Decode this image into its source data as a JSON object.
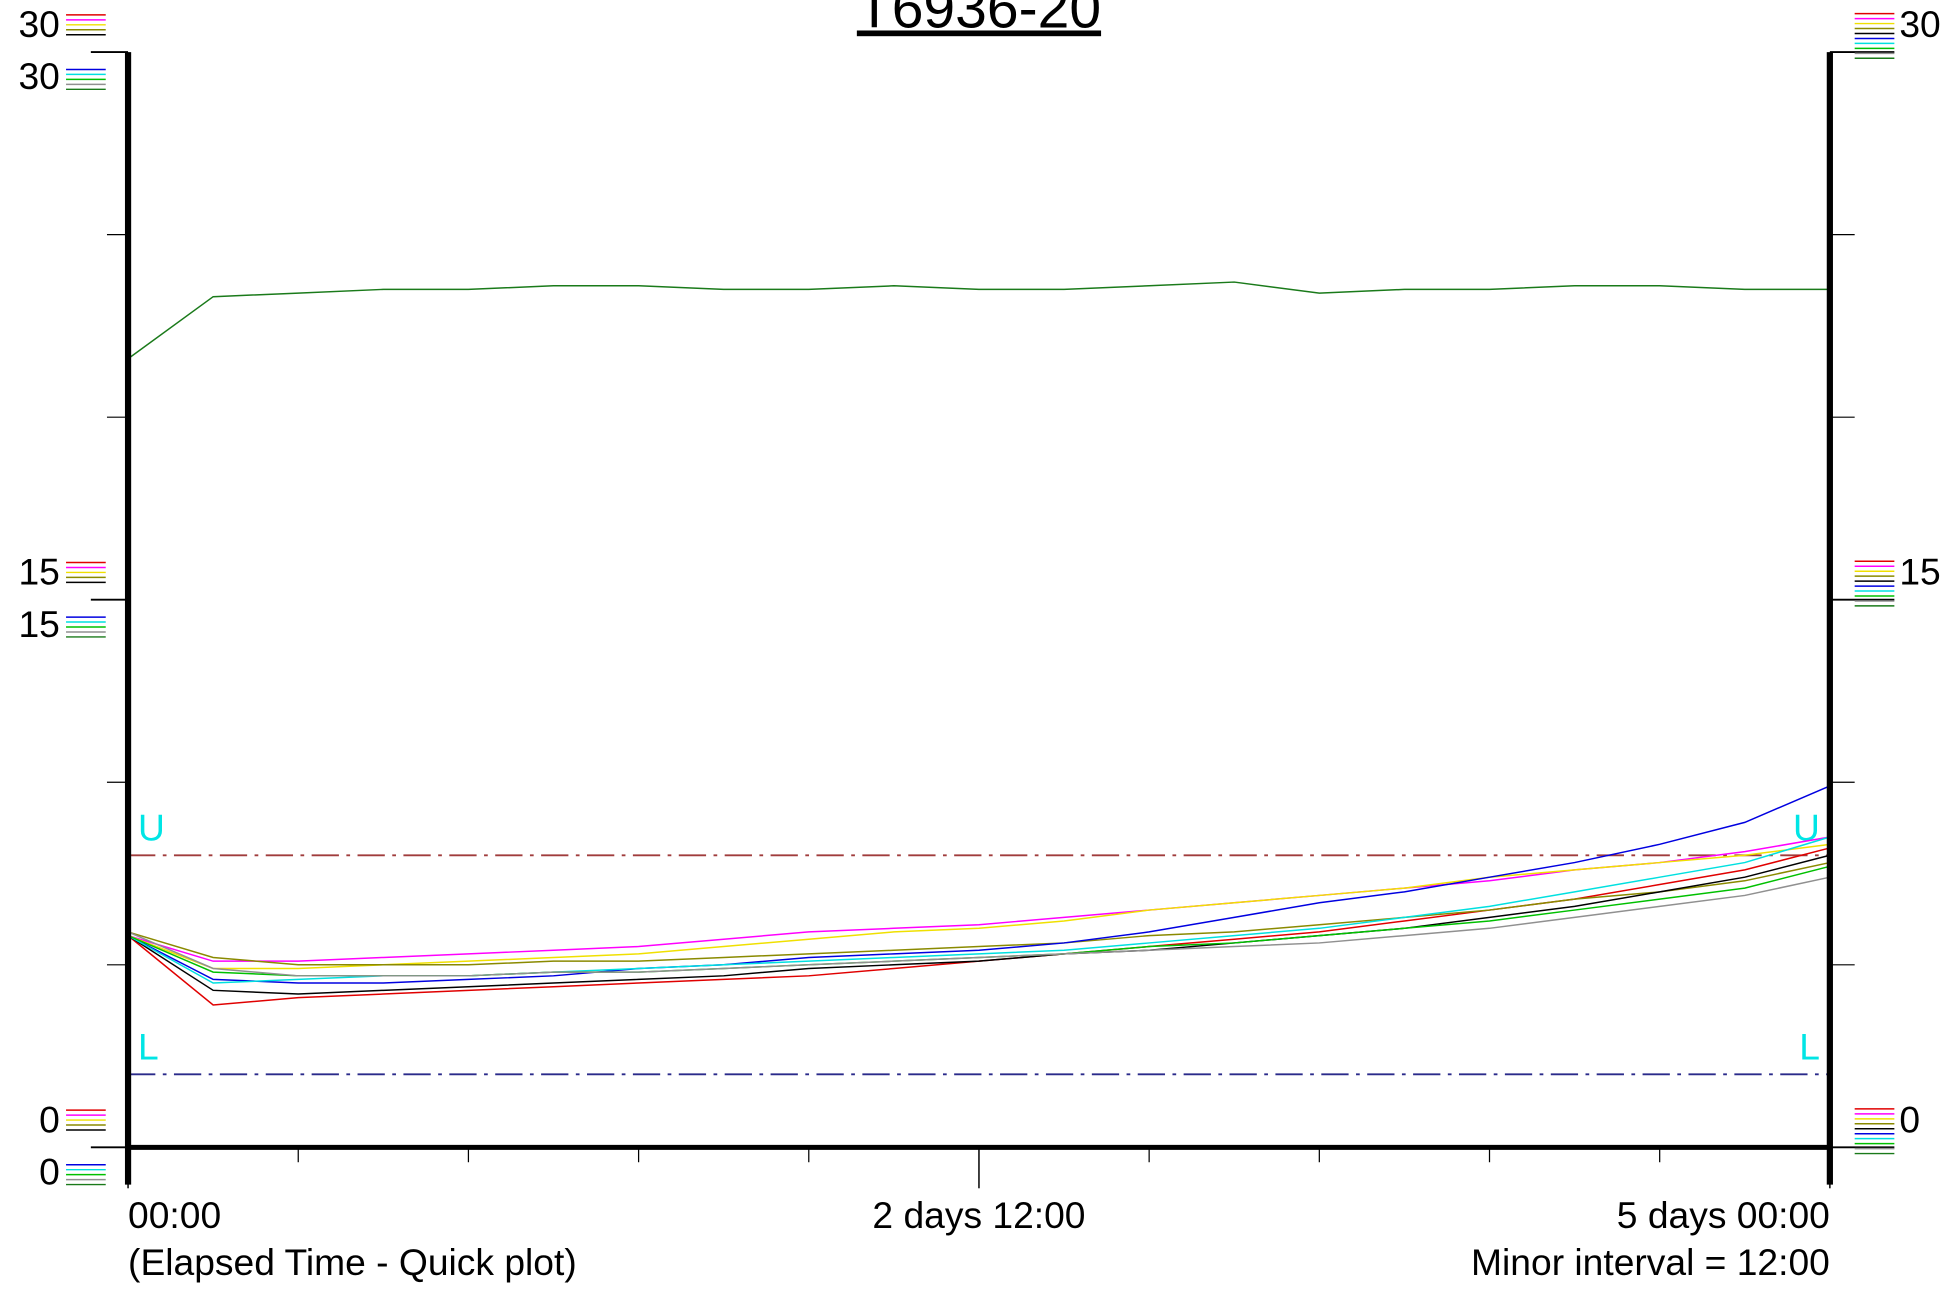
{
  "chart_data": {
    "type": "line",
    "title": "T6936-20",
    "x_label": "(Elapsed Time - Quick plot)",
    "annotation": "Minor interval = 12:00",
    "x": [
      0,
      6,
      12,
      18,
      24,
      30,
      36,
      42,
      48,
      54,
      60,
      66,
      72,
      78,
      84,
      90,
      96,
      102,
      108,
      114,
      120
    ],
    "xlim": [
      0,
      120
    ],
    "xticks": [
      {
        "value": 0,
        "label": "00:00"
      },
      {
        "value": 60,
        "label": "2 days  12:00"
      },
      {
        "value": 120,
        "label": "5 days  00:00"
      }
    ],
    "xminor_ticks": [
      12,
      24,
      36,
      48,
      72,
      84,
      96,
      108
    ],
    "ylim": [
      0,
      30
    ],
    "yticks": [
      0,
      15,
      30
    ],
    "yminor_ticks": [
      5,
      10,
      20,
      25
    ],
    "limits": [
      {
        "label": "U",
        "value": 8,
        "color": "#a03c3c"
      },
      {
        "label": "L",
        "value": 2,
        "color": "#2a2a8a"
      }
    ],
    "limit_label_color": "#00e5e5",
    "series": [
      {
        "color": "#e00000",
        "values": [
          5.8,
          3.9,
          4.1,
          4.2,
          4.3,
          4.4,
          4.5,
          4.6,
          4.7,
          4.9,
          5.1,
          5.3,
          5.5,
          5.7,
          5.9,
          6.2,
          6.5,
          6.8,
          7.2,
          7.6,
          8.2
        ]
      },
      {
        "color": "#ff00ff",
        "values": [
          5.8,
          5.1,
          5.1,
          5.2,
          5.3,
          5.4,
          5.5,
          5.7,
          5.9,
          6.0,
          6.1,
          6.3,
          6.5,
          6.7,
          6.9,
          7.1,
          7.3,
          7.6,
          7.8,
          8.1,
          8.5
        ]
      },
      {
        "color": "#f0e000",
        "values": [
          5.8,
          4.9,
          4.9,
          5.0,
          5.1,
          5.2,
          5.3,
          5.5,
          5.7,
          5.9,
          6.0,
          6.2,
          6.5,
          6.7,
          6.9,
          7.1,
          7.4,
          7.6,
          7.8,
          8.0,
          8.3
        ]
      },
      {
        "color": "#8a8a00",
        "values": [
          5.9,
          5.2,
          5.0,
          5.0,
          5.0,
          5.1,
          5.1,
          5.2,
          5.3,
          5.4,
          5.5,
          5.6,
          5.8,
          5.9,
          6.1,
          6.3,
          6.5,
          6.8,
          7.0,
          7.3,
          7.8
        ]
      },
      {
        "color": "#000000",
        "values": [
          5.8,
          4.3,
          4.2,
          4.3,
          4.4,
          4.5,
          4.6,
          4.7,
          4.9,
          5.0,
          5.1,
          5.3,
          5.4,
          5.6,
          5.8,
          6.0,
          6.3,
          6.6,
          7.0,
          7.4,
          8.0
        ]
      },
      {
        "color": "#0000e0",
        "values": [
          5.8,
          4.6,
          4.5,
          4.5,
          4.6,
          4.7,
          4.9,
          5.0,
          5.2,
          5.3,
          5.4,
          5.6,
          5.9,
          6.3,
          6.7,
          7.0,
          7.4,
          7.8,
          8.3,
          8.9,
          9.9
        ]
      },
      {
        "color": "#00e0e0",
        "values": [
          5.8,
          4.5,
          4.6,
          4.7,
          4.7,
          4.8,
          4.9,
          5.0,
          5.1,
          5.2,
          5.3,
          5.4,
          5.6,
          5.8,
          6.0,
          6.3,
          6.6,
          7.0,
          7.4,
          7.8,
          8.5
        ]
      },
      {
        "color": "#00c000",
        "values": [
          5.8,
          4.8,
          4.7,
          4.7,
          4.7,
          4.8,
          4.8,
          4.9,
          5.0,
          5.1,
          5.2,
          5.3,
          5.5,
          5.6,
          5.8,
          6.0,
          6.2,
          6.5,
          6.8,
          7.1,
          7.7
        ]
      },
      {
        "color": "#909090",
        "values": [
          5.9,
          4.9,
          4.7,
          4.7,
          4.7,
          4.8,
          4.8,
          4.9,
          5.0,
          5.1,
          5.2,
          5.3,
          5.4,
          5.5,
          5.6,
          5.8,
          6.0,
          6.3,
          6.6,
          6.9,
          7.4
        ]
      },
      {
        "color": "#1a7a1a",
        "values": [
          21.6,
          23.3,
          23.4,
          23.5,
          23.5,
          23.6,
          23.6,
          23.5,
          23.5,
          23.6,
          23.5,
          23.5,
          23.6,
          23.7,
          23.4,
          23.5,
          23.5,
          23.6,
          23.6,
          23.5,
          23.5
        ]
      }
    ]
  }
}
